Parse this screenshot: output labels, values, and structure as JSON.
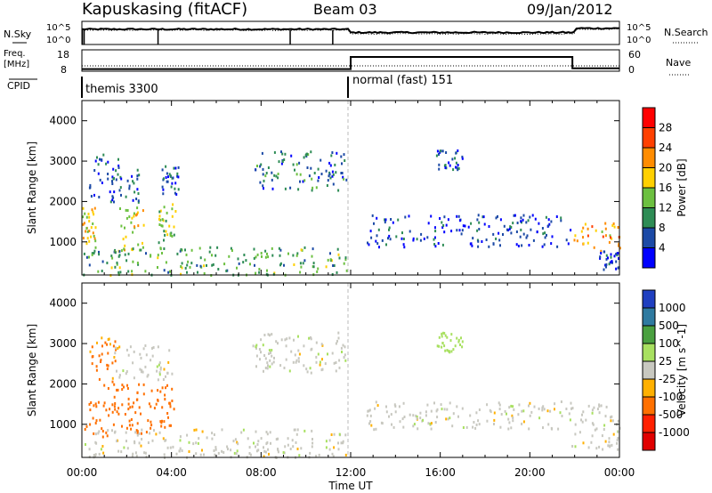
{
  "header": {
    "station": "Kapuskasing (fitACF)",
    "beam": "Beam 03",
    "date": "09/Jan/2012"
  },
  "strips": {
    "nsky_label": "N.Sky",
    "nsky_ticks": [
      "10^5",
      "10^0"
    ],
    "nsearch_label": "N.Search",
    "nsearch_ticks": [
      "10^5",
      "10^0"
    ],
    "freq_label_1": "Freq.",
    "freq_label_2": "[MHz]",
    "freq_ticks": [
      "18",
      "8"
    ],
    "nave_label": "Nave",
    "nave_ticks": [
      "60",
      "0"
    ],
    "cpid_label": "CPID",
    "cpid_segments": [
      "themis 3300",
      "normal (fast) 151"
    ]
  },
  "axes": {
    "x_ticks": [
      "00:00",
      "04:00",
      "08:00",
      "12:00",
      "16:00",
      "20:00",
      "00:00"
    ],
    "x_label": "Time UT",
    "y_ticks": [
      "1000",
      "2000",
      "3000",
      "4000"
    ],
    "y_label": "Slant Range [km]"
  },
  "power_bar": {
    "title": "Power [dB]",
    "ticks": [
      "4",
      "8",
      "12",
      "16",
      "20",
      "24",
      "28"
    ],
    "colors": [
      "#0000ff",
      "#1c4aa6",
      "#2e8c55",
      "#6cc040",
      "#ffd000",
      "#ff8c00",
      "#ff4000",
      "#ff0000"
    ]
  },
  "velocity_bar": {
    "title": "Velocity [m s^-1]",
    "ticks": [
      "1000",
      "500",
      "100",
      "25",
      "-25",
      "-100",
      "-500",
      "-1000"
    ],
    "colors": [
      "#1f3fc0",
      "#2f7aa0",
      "#4aa040",
      "#a8e060",
      "#c8c8c0",
      "#ffb000",
      "#ff7000",
      "#ff2000",
      "#e00000"
    ]
  },
  "chart_data": [
    {
      "type": "line",
      "title": "N.Sky / N.Search",
      "x": [
        "00:00",
        "04:00",
        "08:00",
        "12:00",
        "16:00",
        "20:00",
        "24:00"
      ],
      "ylim_log10": [
        0,
        5
      ],
      "series": [
        {
          "name": "N.Sky",
          "values": [
            3.3,
            3.2,
            3.3,
            2.6,
            2.7,
            2.6,
            3.5
          ]
        },
        {
          "name": "N.Search",
          "values": [
            3.1,
            3.0,
            3.1,
            2.3,
            2.4,
            2.3,
            3.3
          ]
        }
      ]
    },
    {
      "type": "line",
      "title": "Freq. / Nave",
      "x": [
        "00:00",
        "04:00",
        "08:00",
        "12:00",
        "16:00",
        "20:00",
        "24:00"
      ],
      "series": [
        {
          "name": "Freq.",
          "unit": "MHz",
          "values": [
            10.5,
            10.5,
            10.5,
            10.5,
            10.5,
            10.5,
            10.5
          ]
        },
        {
          "name": "Nave",
          "values": [
            6,
            6,
            6,
            40,
            40,
            40,
            8
          ]
        }
      ],
      "freq_ylim": [
        8,
        18
      ],
      "nave_ylim": [
        0,
        60
      ]
    },
    {
      "type": "table",
      "title": "CPID",
      "rows": [
        {
          "label": "themis 3300",
          "start": "00:00",
          "end": "12:00"
        },
        {
          "label": "normal (fast) 151",
          "start": "12:00",
          "end": "24:00"
        }
      ]
    },
    {
      "type": "heatmap",
      "variable": "Power [dB]",
      "xlim_hours": [
        0,
        24
      ],
      "ylim_km": [
        180,
        4500
      ],
      "clim": [
        0,
        32
      ],
      "regions": [
        {
          "t0": 0.0,
          "t1": 0.6,
          "r0": 900,
          "r1": 1900,
          "level": 18
        },
        {
          "t0": 0.3,
          "t1": 1.6,
          "r0": 2000,
          "r1": 3200,
          "level": 6
        },
        {
          "t0": 1.2,
          "t1": 2.6,
          "r0": 2000,
          "r1": 2900,
          "level": 6
        },
        {
          "t0": 1.6,
          "t1": 2.8,
          "r0": 800,
          "r1": 2000,
          "level": 17
        },
        {
          "t0": 3.4,
          "t1": 4.2,
          "r0": 1000,
          "r1": 2000,
          "level": 14
        },
        {
          "t0": 3.5,
          "t1": 4.3,
          "r0": 2200,
          "r1": 2900,
          "level": 7
        },
        {
          "t0": 7.7,
          "t1": 11.9,
          "r0": 2300,
          "r1": 3300,
          "level": 8
        },
        {
          "t0": 0.0,
          "t1": 11.8,
          "r0": 200,
          "r1": 900,
          "level": 12
        },
        {
          "t0": 12.7,
          "t1": 21.8,
          "r0": 900,
          "r1": 1700,
          "level": 5
        },
        {
          "t0": 15.8,
          "t1": 17.0,
          "r0": 2800,
          "r1": 3300,
          "level": 5
        },
        {
          "t0": 21.8,
          "t1": 24.0,
          "r0": 800,
          "r1": 1500,
          "level": 20
        },
        {
          "t0": 23.0,
          "t1": 24.0,
          "r0": 300,
          "r1": 800,
          "level": 6
        }
      ]
    },
    {
      "type": "heatmap",
      "variable": "Velocity [m s^-1]",
      "xlim_hours": [
        0,
        24
      ],
      "ylim_km": [
        180,
        4500
      ],
      "clim": [
        -1000,
        1000
      ],
      "regions": [
        {
          "t0": 0.3,
          "t1": 1.5,
          "r0": 1900,
          "r1": 3200,
          "level": -120
        },
        {
          "t0": 0.1,
          "t1": 1.5,
          "r0": 700,
          "r1": 1600,
          "level": -250
        },
        {
          "t0": 1.3,
          "t1": 3.1,
          "r0": 800,
          "r1": 2050,
          "level": -250
        },
        {
          "t0": 3.2,
          "t1": 4.1,
          "r0": 900,
          "r1": 2000,
          "level": -180
        },
        {
          "t0": 1.4,
          "t1": 4.0,
          "r0": 2100,
          "r1": 3000,
          "level": 0
        },
        {
          "t0": 7.6,
          "t1": 11.9,
          "r0": 2300,
          "r1": 3300,
          "level": 0
        },
        {
          "t0": 0.0,
          "t1": 11.8,
          "r0": 200,
          "r1": 900,
          "level": 0
        },
        {
          "t0": 12.7,
          "t1": 21.8,
          "r0": 900,
          "r1": 1600,
          "level": 0
        },
        {
          "t0": 15.8,
          "t1": 17.0,
          "r0": 2800,
          "r1": 3300,
          "level": 60
        },
        {
          "t0": 21.8,
          "t1": 24.0,
          "r0": 400,
          "r1": 1600,
          "level": 0
        }
      ]
    }
  ]
}
